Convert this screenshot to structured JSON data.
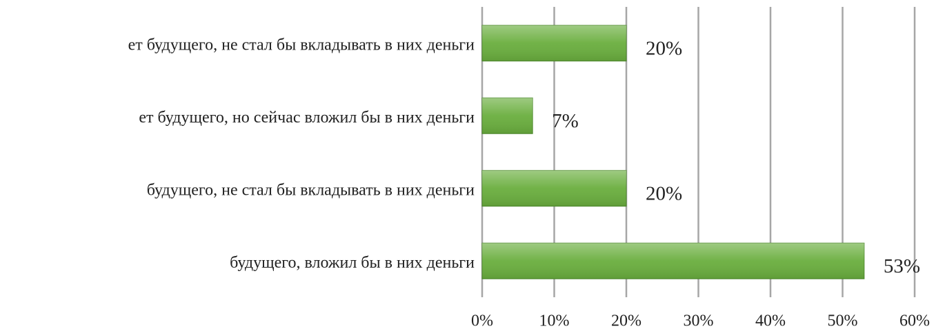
{
  "chart_data": {
    "type": "bar",
    "orientation": "horizontal",
    "categories": [
      "ет будущего, не стал бы вкладывать в них деньги",
      "ет будущего, но сейчас вложил бы в них деньги",
      "будущего, не стал бы вкладывать в них деньги",
      "будущего, вложил бы в них деньги"
    ],
    "values": [
      20,
      7,
      20,
      53
    ],
    "value_labels": [
      "20%",
      "7%",
      "20%",
      "53%"
    ],
    "color": "#6aae3e",
    "xlim": [
      0,
      60
    ],
    "xticks": [
      {
        "value": 0,
        "label": "0%"
      },
      {
        "value": 10,
        "label": "10%"
      },
      {
        "value": 20,
        "label": "20%"
      },
      {
        "value": 30,
        "label": "30%"
      },
      {
        "value": 40,
        "label": "40%"
      },
      {
        "value": 50,
        "label": "50%"
      },
      {
        "value": 60,
        "label": "60%"
      }
    ],
    "grid": true
  }
}
